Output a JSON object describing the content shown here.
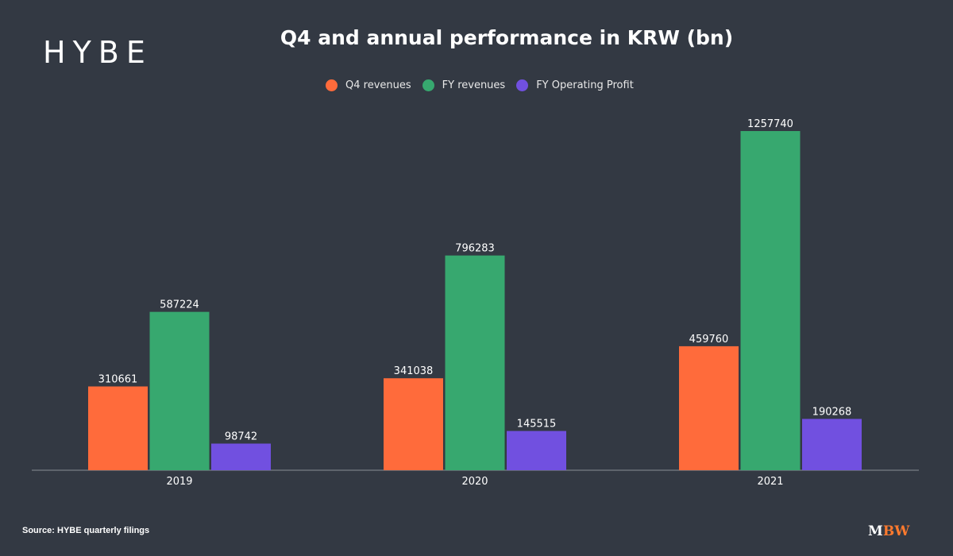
{
  "brand": {
    "logo_text": "HYBE",
    "mbw_m": "M",
    "mbw_bw": "BW"
  },
  "source": "Source: HYBE quarterly filings",
  "colors": {
    "background": "#333943",
    "q4": "#ff6b3b",
    "fy_rev": "#37a86f",
    "fy_op": "#7150e0",
    "mbw_accent": "#ff7a2e"
  },
  "chart_data": {
    "type": "bar",
    "title": "Q4 and annual performance in KRW (bn)",
    "xlabel": "",
    "ylabel": "",
    "categories": [
      "2019",
      "2020",
      "2021"
    ],
    "series": [
      {
        "name": "Q4 revenues",
        "color": "#ff6b3b",
        "values": [
          310661,
          341038,
          459760
        ],
        "labels": [
          "310661",
          "341038",
          "459760"
        ]
      },
      {
        "name": "FY revenues",
        "color": "#37a86f",
        "values": [
          587224,
          796283,
          1257740
        ],
        "labels": [
          "587224",
          "796283",
          "1257740"
        ]
      },
      {
        "name": "FY Operating Profit",
        "color": "#7150e0",
        "values": [
          98742,
          145515,
          190268
        ],
        "labels": [
          "98742",
          "145515",
          "190268"
        ]
      }
    ],
    "ylim": [
      0,
      1257740
    ],
    "grid": false,
    "legend_position": "top-center"
  }
}
